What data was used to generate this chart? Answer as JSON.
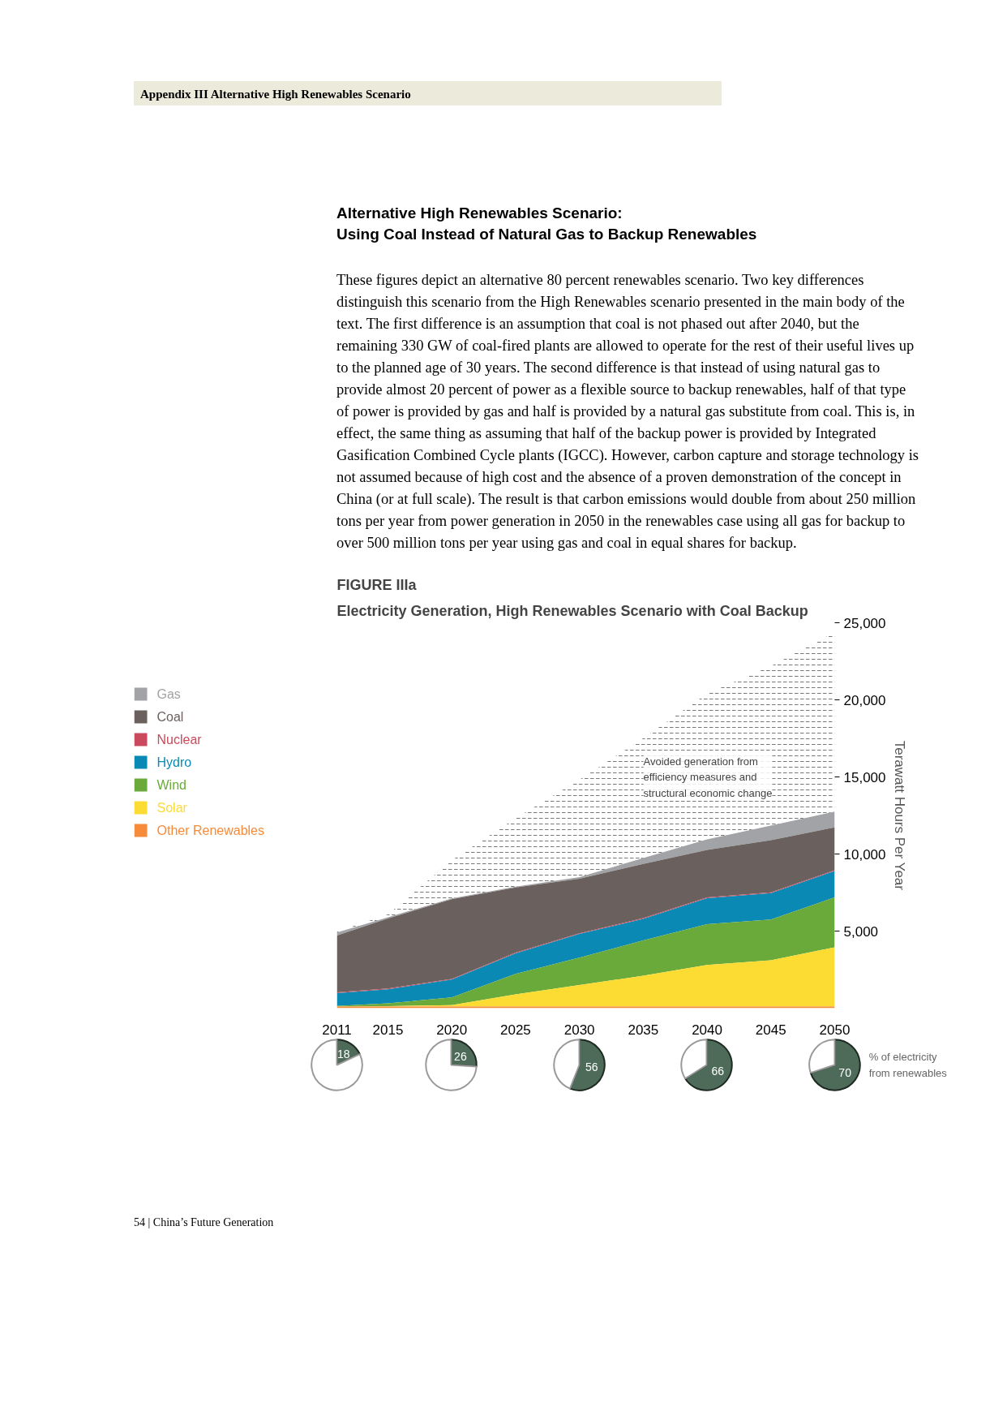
{
  "chart_data": [
    {
      "type": "area",
      "stacked": true,
      "title": "FIGURE IIIa",
      "subtitle": "Electricity Generation, High Renewables Scenario with Coal Backup",
      "ylabel": "Terawatt Hours Per Year",
      "x": [
        2011,
        2015,
        2020,
        2025,
        2030,
        2035,
        2040,
        2045,
        2050
      ],
      "series": [
        {
          "name": "Other Renewables",
          "color": "#f68b3a",
          "values": [
            100,
            100,
            100,
            100,
            100,
            100,
            100,
            100,
            100
          ]
        },
        {
          "name": "Solar",
          "color": "#fcdb32",
          "values": [
            0,
            30,
            100,
            800,
            1400,
            2000,
            2700,
            3000,
            3850
          ]
        },
        {
          "name": "Wind",
          "color": "#6aaa3a",
          "values": [
            50,
            180,
            500,
            1320,
            1780,
            2290,
            2650,
            2650,
            3240
          ]
        },
        {
          "name": "Hydro",
          "color": "#0a89b4",
          "values": [
            820,
            920,
            1150,
            1330,
            1530,
            1400,
            1680,
            1710,
            1710
          ]
        },
        {
          "name": "Nuclear",
          "color": "#c94a5c",
          "values": [
            50,
            50,
            50,
            50,
            50,
            50,
            50,
            50,
            50
          ]
        },
        {
          "name": "Coal",
          "color": "#6a605d",
          "values": [
            3690,
            4540,
            5170,
            4230,
            3540,
            3520,
            3080,
            3390,
            2780
          ]
        },
        {
          "name": "Gas",
          "color": "#a2a3a6",
          "values": [
            200,
            80,
            50,
            50,
            100,
            380,
            690,
            940,
            1020
          ]
        },
        {
          "color": "#555555",
          "values": [
            50,
            180,
            2470,
            4430,
            6320,
            7770,
            9450,
            10340,
            11640
          ]
        }
      ],
      "xlim": [
        2011,
        2050
      ],
      "xticks": [
        2011,
        2015,
        2020,
        2025,
        2030,
        2035,
        2040,
        2045,
        2050
      ],
      "ylim": [
        0,
        25000
      ],
      "yticks": [
        {
          "value": 5000,
          "label": "5,000"
        },
        {
          "value": 10000,
          "label": "10,000"
        },
        {
          "value": 15000,
          "label": "15,000"
        },
        {
          "value": 20000,
          "label": "20,000"
        },
        {
          "value": 25000,
          "label": "25,000"
        }
      ],
      "grid": false,
      "legend": "left",
      "annotations": [
        "Appendix III   Alternative High Renewables Scenario",
        "Alternative High Renewables Scenario:\nUsing Coal Instead of Natural Gas to Backup Renewables",
        "These figures depict an alternative 80 percent renewables scenario. Two key differences distinguish this scenario from the High Renewables scenario presented in the main body of the text. The first difference is an assumption that coal is not phased out after 2040, but the remaining 330 GW of coal-fired plants are allowed to operate for the rest of their useful lives up to the planned age of 30 years. The second difference is that instead of using natural gas to provide almost 20 percent of power as a flexible source to backup renewables, half of that type of power is provided by gas and half is provided by a natural gas substitute from coal. This is, in effect, the same thing as assuming that half of the backup power is provided by Integrated Gasification Combined Cycle plants (IGCC). However, carbon capture and storage technology is not assumed because of high cost and the absence of a proven demonstration of the concept in China (or at full scale). The result is that carbon emissions would double from about 250 million tons per year from power generation in 2050 in the renewables case using all gas for backup to over 500 million tons per year using gas and coal in equal shares for backup.",
        "54  |  China’s Future Generation",
        "Avoided generation from\nefficiency measures and\nstructural economic change"
      ]
    },
    {
      "type": "pie",
      "categories": [
        null,
        null
      ],
      "values": [
        18,
        82
      ],
      "colors": [
        "#4d6b58",
        "#ffffff"
      ],
      "value_labels": [
        "18",
        null
      ]
    },
    {
      "type": "pie",
      "categories": [
        null,
        null
      ],
      "values": [
        26,
        74
      ],
      "colors": [
        "#4d6b58",
        "#ffffff"
      ],
      "value_labels": [
        "26",
        null
      ]
    },
    {
      "type": "pie",
      "categories": [
        null,
        null
      ],
      "values": [
        56,
        44
      ],
      "colors": [
        "#4d6b58",
        "#ffffff"
      ],
      "value_labels": [
        "56",
        null
      ]
    },
    {
      "type": "pie",
      "categories": [
        null,
        null
      ],
      "values": [
        66,
        34
      ],
      "colors": [
        "#4d6b58",
        "#ffffff"
      ],
      "value_labels": [
        "66",
        null
      ]
    },
    {
      "type": "pie",
      "categories": [
        null,
        null
      ],
      "values": [
        70,
        30
      ],
      "colors": [
        "#4d6b58",
        "#ffffff"
      ],
      "value_labels": [
        "70",
        null
      ],
      "annotations": [
        "% of electricity\nfrom renewables"
      ]
    }
  ]
}
